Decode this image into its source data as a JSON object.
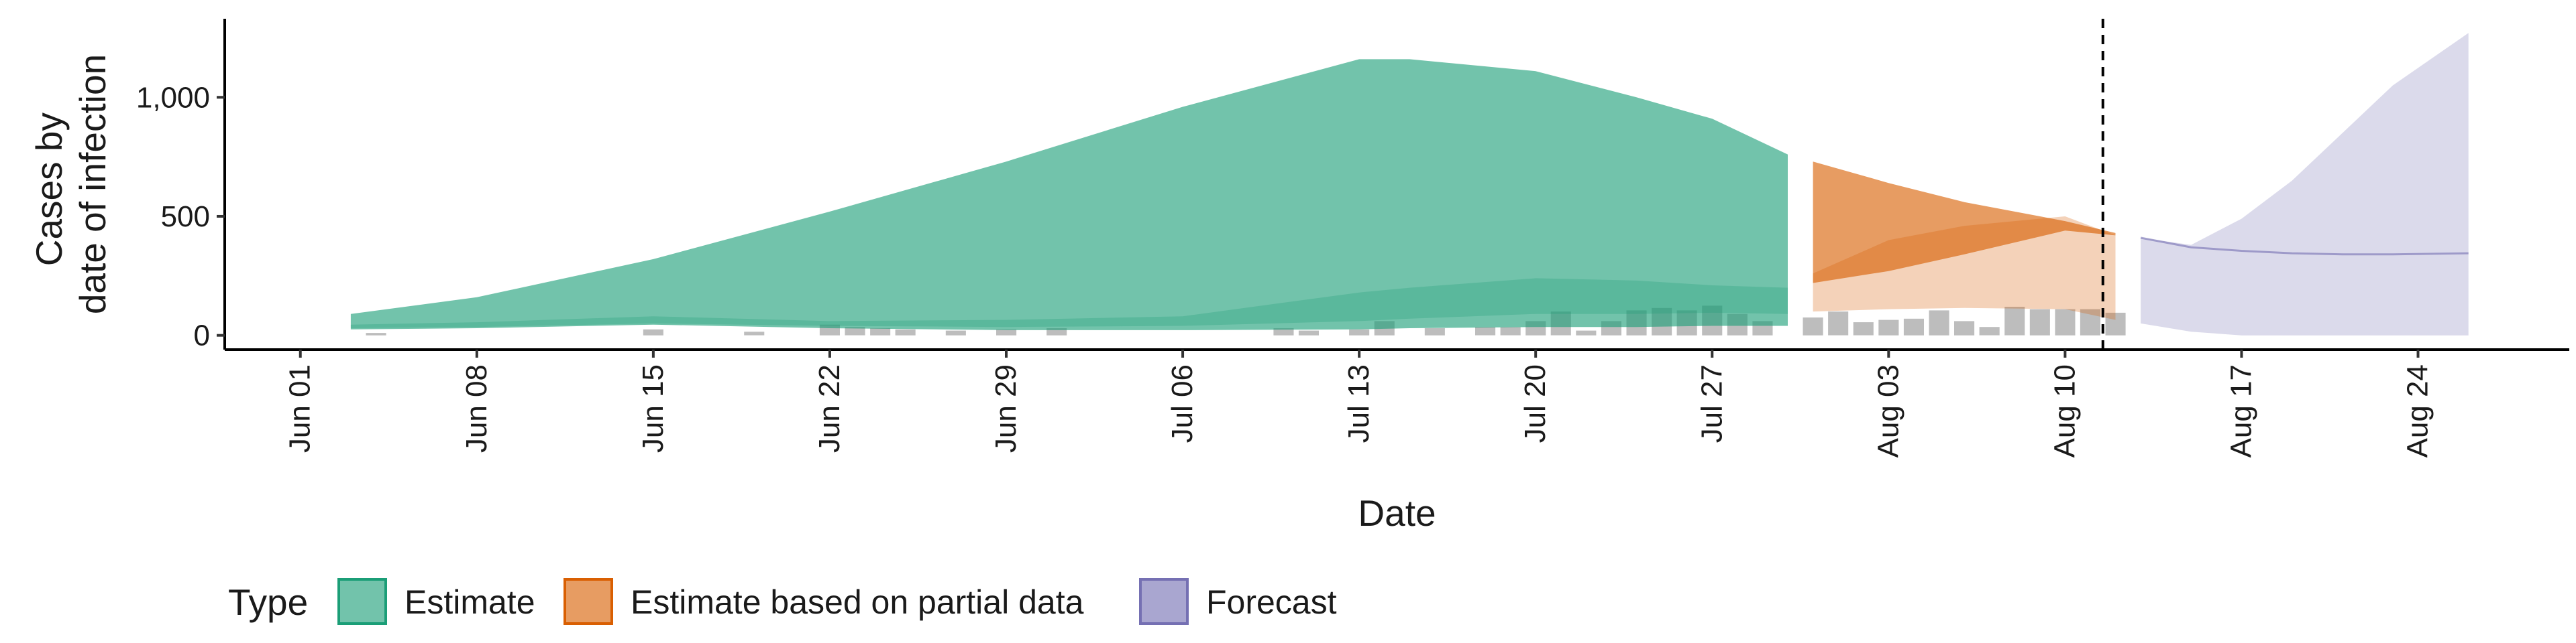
{
  "chart_data": {
    "type": "area",
    "title": "",
    "xlabel": "Date",
    "ylabel_lines": [
      "Cases by",
      "date of infection"
    ],
    "x_ticks": [
      "Jun 01",
      "Jun 08",
      "Jun 15",
      "Jun 22",
      "Jun 29",
      "Jul 06",
      "Jul 13",
      "Jul 20",
      "Jul 27",
      "Aug 03",
      "Aug 10",
      "Aug 17",
      "Aug 24"
    ],
    "y_ticks": [
      0,
      500,
      1000
    ],
    "y_tick_labels": [
      "0",
      "500",
      "1,000"
    ],
    "ylim": [
      -60,
      1330
    ],
    "xlim": [
      "2020-05-29",
      "2020-08-30"
    ],
    "forecast_start": "2020-08-12",
    "grid": false,
    "legend": {
      "position": "bottom",
      "title": "Type",
      "entries": [
        {
          "label": "Estimate",
          "color": "#1B9E77"
        },
        {
          "label": "Estimate based on partial data",
          "color": "#D95F02"
        },
        {
          "label": "Forecast",
          "color": "#7570B3"
        }
      ]
    },
    "series": [
      {
        "name": "Estimate",
        "color": "#1B9E77",
        "x": [
          "2020-06-03",
          "2020-06-08",
          "2020-06-15",
          "2020-06-22",
          "2020-06-29",
          "2020-07-06",
          "2020-07-13",
          "2020-07-15",
          "2020-07-20",
          "2020-07-24",
          "2020-07-27",
          "2020-07-30"
        ],
        "outer_upper": [
          90,
          160,
          320,
          520,
          730,
          960,
          1160,
          1160,
          1110,
          1000,
          910,
          760
        ],
        "outer_lower": [
          25,
          30,
          45,
          30,
          22,
          22,
          25,
          30,
          35,
          35,
          40,
          40
        ],
        "inner_upper": [
          45,
          55,
          80,
          60,
          65,
          80,
          180,
          200,
          240,
          230,
          210,
          200
        ],
        "inner_lower": [
          30,
          35,
          50,
          40,
          35,
          40,
          60,
          70,
          90,
          90,
          95,
          90
        ]
      },
      {
        "name": "Estimate based on partial data",
        "color": "#D95F02",
        "x": [
          "2020-07-31",
          "2020-08-03",
          "2020-08-06",
          "2020-08-10",
          "2020-08-12"
        ],
        "outer_upper": [
          730,
          640,
          560,
          480,
          430
        ],
        "outer_lower": [
          220,
          270,
          340,
          440,
          420
        ],
        "inner_upper": [
          260,
          400,
          460,
          500,
          420
        ],
        "inner_lower": [
          100,
          110,
          115,
          110,
          65
        ]
      },
      {
        "name": "Forecast",
        "color": "#7570B3",
        "x": [
          "2020-08-13",
          "2020-08-15",
          "2020-08-17",
          "2020-08-19",
          "2020-08-21",
          "2020-08-23",
          "2020-08-26"
        ],
        "outer_upper": [
          410,
          380,
          490,
          650,
          850,
          1050,
          1270
        ],
        "outer_lower": [
          50,
          15,
          0,
          0,
          0,
          0,
          0
        ],
        "median": [
          410,
          370,
          355,
          345,
          340,
          340,
          345
        ]
      }
    ],
    "reported_cases": {
      "color": "#bdbdbd",
      "dates": [
        "2020-06-04",
        "2020-06-15",
        "2020-06-19",
        "2020-06-22",
        "2020-06-23",
        "2020-06-24",
        "2020-06-25",
        "2020-06-27",
        "2020-06-29",
        "2020-07-01",
        "2020-07-10",
        "2020-07-11",
        "2020-07-13",
        "2020-07-14",
        "2020-07-16",
        "2020-07-18",
        "2020-07-19",
        "2020-07-20",
        "2020-07-21",
        "2020-07-22",
        "2020-07-23",
        "2020-07-24",
        "2020-07-25",
        "2020-07-26",
        "2020-07-27",
        "2020-07-28",
        "2020-07-29",
        "2020-07-31",
        "2020-08-01",
        "2020-08-02",
        "2020-08-03",
        "2020-08-04",
        "2020-08-05",
        "2020-08-06",
        "2020-08-07",
        "2020-08-08",
        "2020-08-09",
        "2020-08-10",
        "2020-08-11",
        "2020-08-12"
      ],
      "values": [
        10,
        25,
        15,
        45,
        35,
        30,
        25,
        20,
        25,
        30,
        30,
        20,
        25,
        60,
        30,
        35,
        35,
        60,
        100,
        20,
        60,
        105,
        115,
        105,
        125,
        90,
        60,
        75,
        100,
        55,
        65,
        70,
        105,
        60,
        35,
        120,
        110,
        110,
        110,
        95
      ]
    }
  }
}
